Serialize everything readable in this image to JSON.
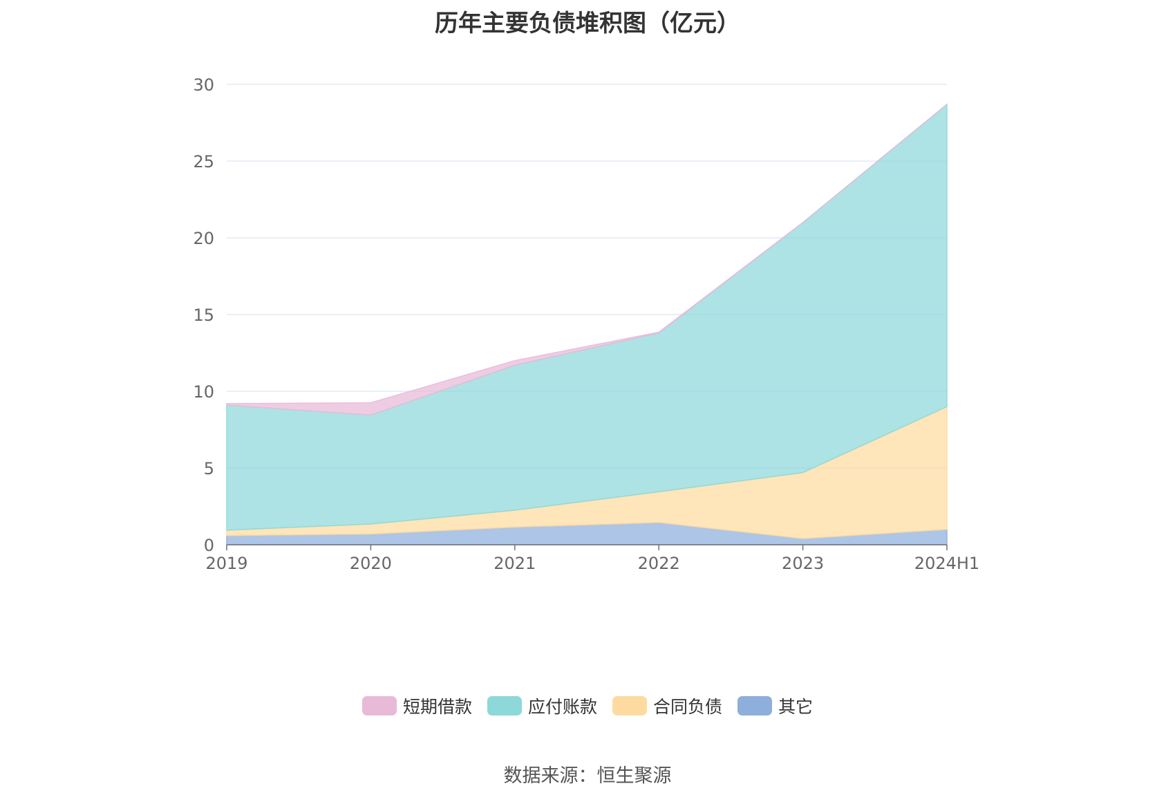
{
  "chart_data": {
    "type": "area",
    "stacked": true,
    "title": "历年主要负债堆积图（亿元）",
    "categories": [
      "2019",
      "2020",
      "2021",
      "2022",
      "2023",
      "2024H1"
    ],
    "ylim": [
      0,
      30
    ],
    "yticks": [
      0,
      5,
      10,
      15,
      20,
      25,
      30
    ],
    "grid": true,
    "legend_position": "bottom",
    "series": [
      {
        "name": "其它",
        "color": "#8eaedc",
        "values": [
          0.6,
          0.7,
          1.15,
          1.45,
          0.4,
          1.0
        ]
      },
      {
        "name": "合同负债",
        "color": "#fddba0",
        "values": [
          0.35,
          0.65,
          1.1,
          2.0,
          4.3,
          8.0
        ]
      },
      {
        "name": "应付账款",
        "color": "#8dd8d9",
        "values": [
          8.15,
          7.1,
          9.45,
          10.35,
          16.3,
          19.7
        ]
      },
      {
        "name": "短期借款",
        "color": "#e8bad8",
        "values": [
          0.1,
          0.8,
          0.3,
          0.05,
          0.0,
          0.0
        ]
      }
    ],
    "legend_order": [
      "短期借款",
      "应付账款",
      "合同负债",
      "其它"
    ]
  },
  "source": "数据来源：恒生聚源"
}
